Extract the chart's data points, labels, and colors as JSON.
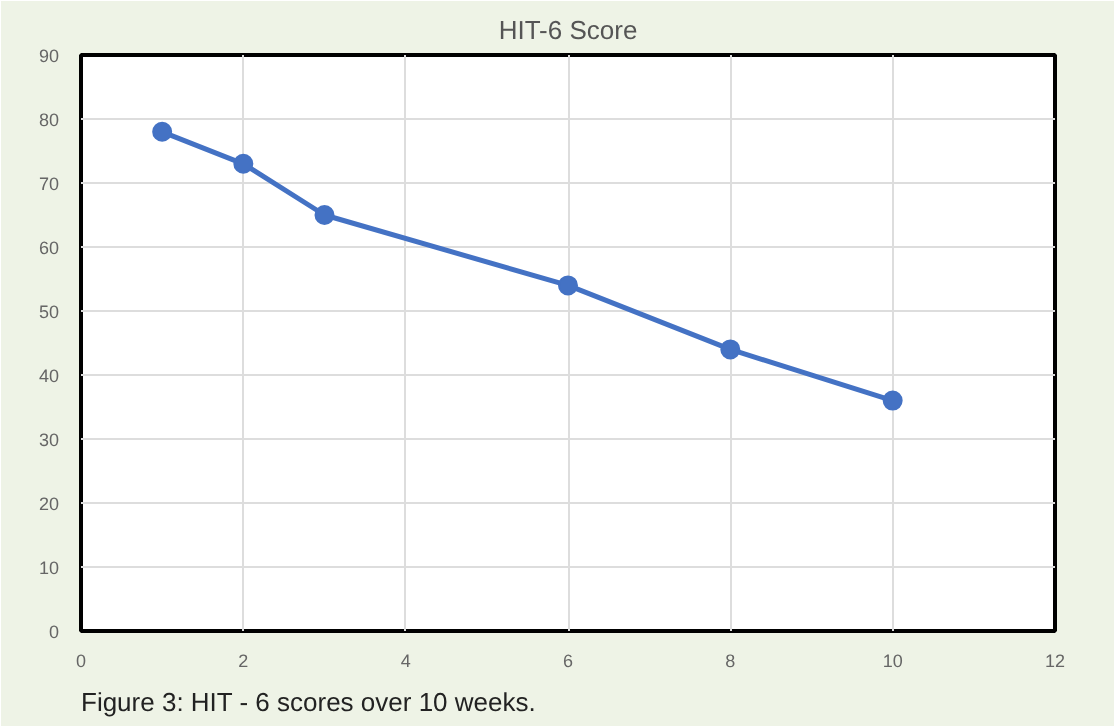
{
  "chart_data": {
    "type": "line",
    "title": "HIT-6 Score",
    "x": [
      1,
      2,
      3,
      6,
      8,
      10
    ],
    "series": [
      {
        "color": "#4472c4",
        "values": [
          78,
          73,
          65,
          54,
          44,
          36
        ]
      }
    ],
    "xlim": [
      0,
      12
    ],
    "xticks": [
      0,
      2,
      4,
      6,
      8,
      10,
      12
    ],
    "ylim": [
      0,
      90
    ],
    "yticks": [
      0,
      10,
      20,
      30,
      40,
      50,
      60,
      70,
      80,
      90
    ],
    "grid": true,
    "marker": "circle",
    "line_style": "solid",
    "annotations": [
      "Figure 3: HIT - 6 scores over 10 weeks."
    ]
  }
}
